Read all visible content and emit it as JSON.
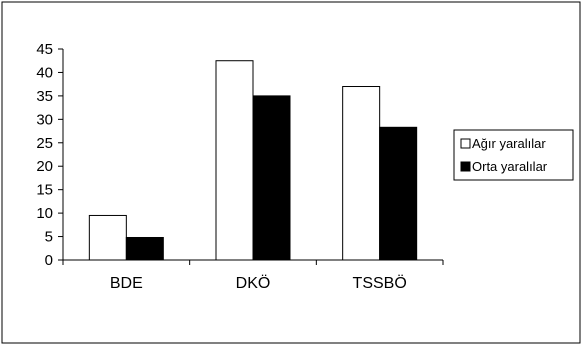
{
  "chart_data": {
    "type": "bar",
    "categories": [
      "BDE",
      "DKÖ",
      "TSSBÖ"
    ],
    "series": [
      {
        "name": "Ağır yaralılar",
        "values": [
          9.5,
          42.5,
          37
        ],
        "color": "#ffffff"
      },
      {
        "name": "Orta yaralılar",
        "values": [
          4.8,
          35,
          28.3
        ],
        "color": "#000000"
      }
    ],
    "ylim": [
      0,
      45
    ],
    "yticks": [
      "0",
      "5",
      "10",
      "15",
      "20",
      "25",
      "30",
      "35",
      "40",
      "45"
    ],
    "grid": false,
    "legend_position": "right"
  }
}
